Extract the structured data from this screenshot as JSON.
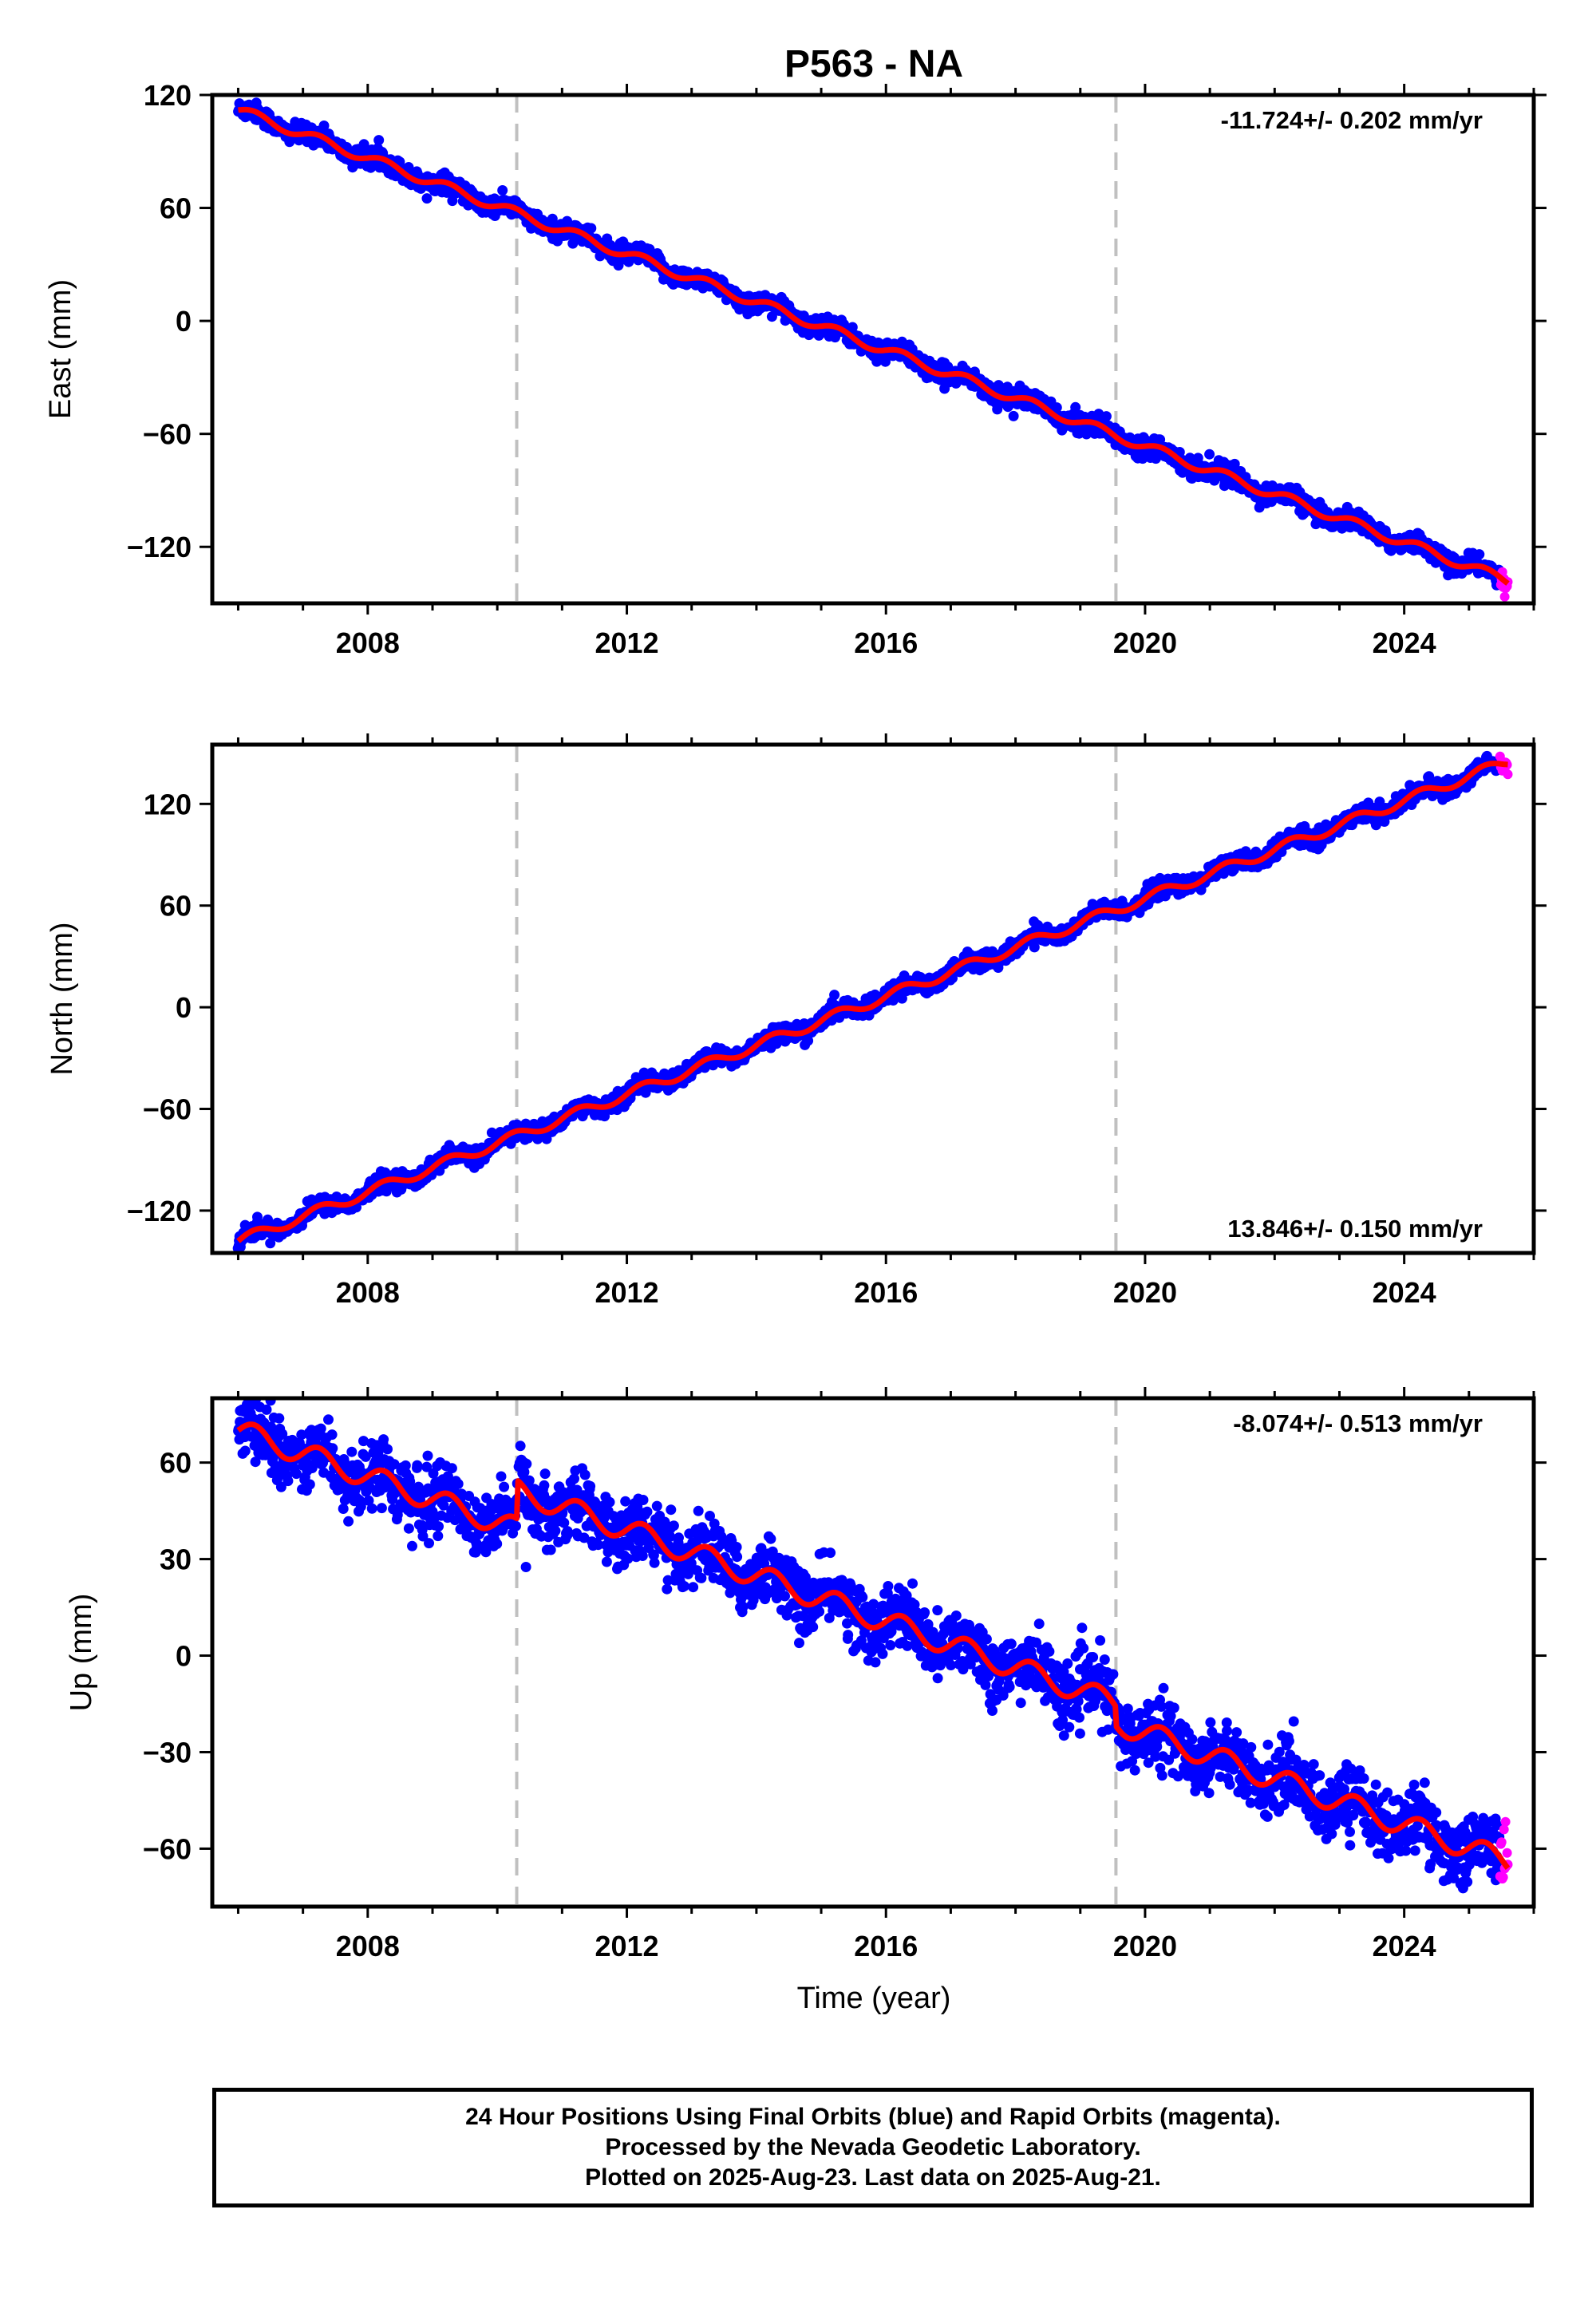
{
  "chart_data": [
    {
      "type": "scatter",
      "title": "P563 - NA",
      "xlabel": "",
      "ylabel": "East (mm)",
      "xlim": [
        2005.6,
        2026.0
      ],
      "ylim": [
        -150,
        120
      ],
      "xticks": [
        2008,
        2012,
        2016,
        2020,
        2024
      ],
      "yticks": [
        120,
        60,
        0,
        -60,
        -120
      ],
      "vlines": [
        2010.3,
        2019.55
      ],
      "rate_label": "-11.724+/- 0.202 mm/yr",
      "rate_position": "top-right",
      "start": {
        "year": 2006.0,
        "value": 112
      },
      "end": {
        "year": 2025.6,
        "value": -138
      },
      "fit_segments": [
        {
          "from": 2006.0,
          "to": 2025.6,
          "offset": 0
        }
      ],
      "seasonal_amplitude": 2.5,
      "noise_mm": 2.5,
      "series": [
        {
          "role": "final",
          "color": "#0000ff"
        },
        {
          "role": "rapid",
          "color": "#ff00ff"
        },
        {
          "role": "model",
          "color": "#ff0000"
        }
      ]
    },
    {
      "type": "scatter",
      "xlabel": "",
      "ylabel": "North (mm)",
      "xlim": [
        2005.6,
        2026.0
      ],
      "ylim": [
        -145,
        155
      ],
      "xticks": [
        2008,
        2012,
        2016,
        2020,
        2024
      ],
      "yticks": [
        120,
        60,
        0,
        -60,
        -120
      ],
      "vlines": [
        2010.3,
        2019.55
      ],
      "rate_label": "13.846+/- 0.150 mm/yr",
      "rate_position": "bottom-right",
      "start": {
        "year": 2006.0,
        "value": -138
      },
      "end": {
        "year": 2025.6,
        "value": 145
      },
      "fit_segments": [
        {
          "from": 2006.0,
          "to": 2025.6,
          "offset": 0
        }
      ],
      "seasonal_amplitude": 3,
      "noise_mm": 2.5,
      "series": [
        {
          "role": "final",
          "color": "#0000ff"
        },
        {
          "role": "rapid",
          "color": "#ff00ff"
        },
        {
          "role": "model",
          "color": "#ff0000"
        }
      ]
    },
    {
      "type": "scatter",
      "xlabel": "Time (year)",
      "ylabel": "Up (mm)",
      "xlim": [
        2005.6,
        2026.0
      ],
      "ylim": [
        -78,
        80
      ],
      "xticks": [
        2008,
        2012,
        2016,
        2020,
        2024
      ],
      "yticks": [
        60,
        30,
        0,
        -30,
        -60
      ],
      "vlines": [
        2010.3,
        2019.55
      ],
      "rate_label": "-8.074+/- 0.513 mm/yr",
      "rate_position": "top-right",
      "start": {
        "year": 2006.0,
        "value": 70
      },
      "end": {
        "year": 2025.6,
        "value": -70
      },
      "fit_segments": [
        {
          "from": 2006.0,
          "to": 2010.3,
          "offset": 0
        },
        {
          "from": 2010.3,
          "to": 2019.55,
          "offset": 12
        },
        {
          "from": 2019.55,
          "to": 2025.6,
          "offset": 6
        }
      ],
      "seasonal_amplitude": 3.5,
      "noise_mm": 5,
      "series": [
        {
          "role": "final",
          "color": "#0000ff"
        },
        {
          "role": "rapid",
          "color": "#ff00ff"
        },
        {
          "role": "model",
          "color": "#ff0000"
        }
      ]
    }
  ],
  "caption": {
    "line1": "24 Hour Positions Using Final Orbits (blue) and Rapid Orbits (magenta).",
    "line2": "Processed by the Nevada Geodetic Laboratory.",
    "line3": "Plotted on 2025-Aug-23. Last data on 2025-Aug-21."
  }
}
